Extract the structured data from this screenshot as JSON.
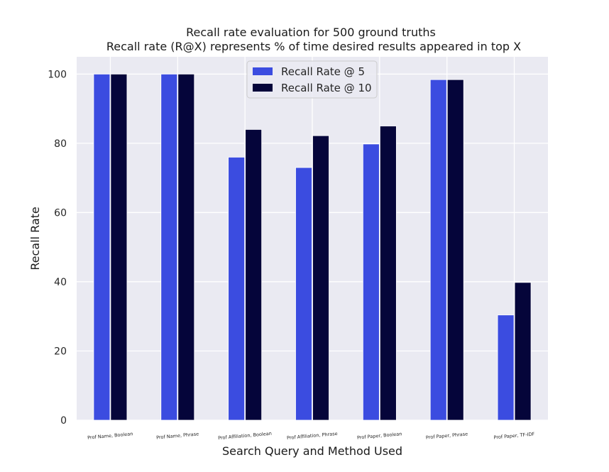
{
  "chart_data": {
    "type": "bar",
    "title": "Recall rate evaluation for 500 ground truths",
    "subtitle": "Recall rate (R@X) represents % of time desired results appeared in top X",
    "xlabel": "Search Query and Method Used",
    "ylabel": "Recall Rate",
    "categories": [
      "Prof Name, Boolean",
      "Prof Name, Phrase",
      "Prof Affiliation, Boolean",
      "Prof Affiliation, Phrase",
      "Prof Paper, Boolean",
      "Prof Paper, Phrase",
      "Prof Paper, TF-IDF"
    ],
    "series": [
      {
        "name": "Recall Rate @ 5",
        "color": "#3b4ce0",
        "values": [
          100,
          100,
          76,
          73,
          79.8,
          98.4,
          30.4
        ]
      },
      {
        "name": "Recall Rate @ 10",
        "color": "#05053a",
        "values": [
          100,
          100,
          84,
          82.2,
          85,
          98.4,
          39.8
        ]
      }
    ],
    "ylim": [
      0,
      105
    ],
    "yticks": [
      0,
      20,
      40,
      60,
      80,
      100
    ],
    "grid": true,
    "legend_position": "top-center",
    "x_tick_rotation_deg": 5
  }
}
